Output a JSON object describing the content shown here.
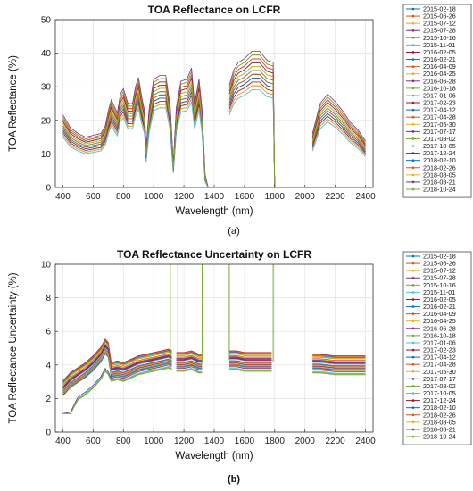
{
  "chart_data": [
    {
      "type": "line",
      "panel": "a",
      "title": "TOA Reflectance on LCFR",
      "xlabel": "Wavelength (nm)",
      "ylabel": "TOA Reflectance (%)",
      "xlim": [
        350,
        2450
      ],
      "ylim": [
        0,
        50
      ],
      "xticks": [
        400,
        600,
        800,
        1000,
        1200,
        1400,
        1600,
        1800,
        2000,
        2200,
        2400
      ],
      "yticks": [
        0,
        10,
        20,
        30,
        40,
        50
      ],
      "grid": true,
      "legend": "right-outside",
      "dates": [
        "2015-02-18",
        "2015-06-26",
        "2015-07-12",
        "2015-07-28",
        "2015-10-16",
        "2015-11-01",
        "2016-02-05",
        "2016-02-21",
        "2016-04-09",
        "2016-04-25",
        "2016-06-28",
        "2016-10-18",
        "2017-01-06",
        "2017-02-23",
        "2017-04-12",
        "2017-04-28",
        "2017-05-30",
        "2017-07-17",
        "2017-08-02",
        "2017-10-05",
        "2017-12-24",
        "2018-02-10",
        "2018-02-26",
        "2018-08-05",
        "2018-08-21",
        "2018-10-24"
      ],
      "base_profile": {
        "x": [
          400,
          450,
          500,
          550,
          600,
          650,
          680,
          700,
          720,
          760,
          780,
          800,
          830,
          860,
          880,
          900,
          920,
          940,
          950,
          970,
          1000,
          1040,
          1080,
          1110,
          1130,
          1150,
          1180,
          1220,
          1250,
          1270,
          1300,
          1320,
          1340,
          1360,
          1400,
          1450,
          1500,
          1530,
          1560,
          1600,
          1650,
          1700,
          1750,
          1790,
          1800,
          1950,
          2000,
          2050,
          2100,
          2150,
          2200,
          2250,
          2300,
          2350,
          2400
        ],
        "y": [
          19,
          15.5,
          14,
          13,
          13.5,
          14,
          16,
          20,
          23,
          19.5,
          24.5,
          26,
          22,
          22,
          26.5,
          29,
          24,
          20,
          10,
          20.5,
          28.5,
          29.5,
          29.5,
          21,
          6,
          21,
          28,
          28.5,
          31.5,
          22,
          28.5,
          20.5,
          3,
          0,
          0,
          null,
          27,
          31,
          33,
          34,
          36,
          36,
          33.5,
          33,
          0,
          null,
          null,
          14,
          22,
          24.5,
          22.5,
          20,
          17,
          15,
          12
        ]
      },
      "series_offsets": [
        0,
        -3,
        -4,
        -5,
        -2,
        1,
        2,
        -1,
        3,
        -6,
        -3,
        0,
        1,
        -4,
        -2,
        2,
        -5,
        -1,
        3,
        -6,
        1,
        -3,
        -2,
        0,
        4,
        -1
      ]
    },
    {
      "type": "line",
      "panel": "b",
      "title": "TOA Reflectance Uncertainty on LCFR",
      "xlabel": "Wavelength (nm)",
      "ylabel": "TOA Reflectance Uncertainty (%)",
      "xlim": [
        350,
        2450
      ],
      "ylim": [
        0,
        10
      ],
      "xticks": [
        400,
        600,
        800,
        1000,
        1200,
        1400,
        1600,
        1800,
        2000,
        2200,
        2400
      ],
      "yticks": [
        0,
        2,
        4,
        6,
        8,
        10
      ],
      "grid": true,
      "legend": "right-outside",
      "dates": [
        "2015-02-18",
        "2015-06-26",
        "2015-07-12",
        "2015-07-28",
        "2015-10-16",
        "2015-11-01",
        "2016-02-05",
        "2016-02-21",
        "2016-04-09",
        "2016-04-25",
        "2016-06-28",
        "2016-10-18",
        "2017-01-06",
        "2017-02-23",
        "2017-04-12",
        "2017-04-28",
        "2017-05-30",
        "2017-07-17",
        "2017-08-02",
        "2017-10-05",
        "2017-12-24",
        "2018-02-10",
        "2018-02-26",
        "2018-08-05",
        "2018-08-21",
        "2018-10-24"
      ],
      "base_profile": {
        "x": [
          400,
          450,
          500,
          550,
          600,
          650,
          680,
          700,
          720,
          760,
          800,
          850,
          900,
          950,
          1000,
          1050,
          1100,
          1120,
          1130,
          1150,
          1200,
          1250,
          1300,
          1320,
          1330,
          1490,
          1500,
          1550,
          1600,
          1650,
          1700,
          1750,
          1780,
          1790,
          2040,
          2050,
          2100,
          2200,
          2300,
          2400
        ],
        "y": [
          2.5,
          3,
          3.3,
          3.6,
          4,
          4.5,
          5,
          4.8,
          3.6,
          3.7,
          3.6,
          3.8,
          4,
          4.1,
          4.2,
          4.3,
          4.4,
          4.3,
          null,
          4.2,
          4.2,
          4.3,
          4.1,
          4.1,
          null,
          null,
          4.3,
          4.3,
          4.2,
          4.2,
          4.2,
          4.2,
          4.2,
          null,
          null,
          4.1,
          4.1,
          4,
          4,
          4
        ]
      },
      "series_offsets": [
        0.2,
        -0.6,
        0.9,
        -0.3,
        0.4,
        -1.1,
        1.2,
        -0.1,
        0.6,
        -0.8,
        0.3,
        -1.3,
        0.1,
        -0.4,
        1.0,
        -0.2,
        0.5,
        -0.9,
        0.8,
        -0.5,
        0.2,
        -0.7,
        1.1,
        -0.3,
        0.4,
        -1.2
      ]
    }
  ],
  "panel_labels": {
    "a": "a",
    "b": "b"
  },
  "colors": [
    "#0072BD",
    "#D95319",
    "#EDB120",
    "#7E2F8E",
    "#77AC30",
    "#4DBEEE",
    "#A2142F",
    "#0072BD",
    "#D95319",
    "#EDB120",
    "#7E2F8E",
    "#77AC30",
    "#4DBEEE",
    "#A2142F",
    "#0072BD",
    "#D95319",
    "#EDB120",
    "#7E2F8E",
    "#77AC30",
    "#4DBEEE",
    "#A2142F",
    "#0072BD",
    "#D95319",
    "#EDB120",
    "#7E2F8E",
    "#77AC30"
  ]
}
